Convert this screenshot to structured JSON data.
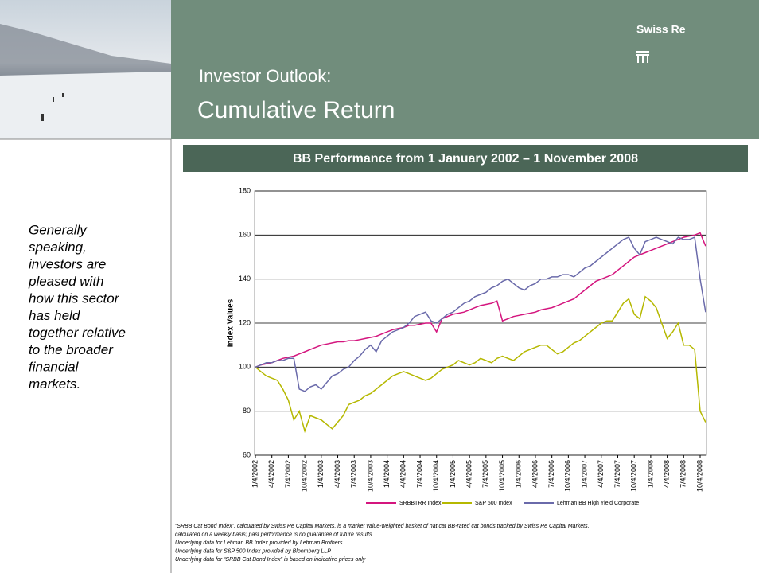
{
  "header": {
    "brand": "Swiss Re",
    "title": "Investor Outlook:",
    "subtitle": "Cumulative Return"
  },
  "sidebar": {
    "lines": [
      "Generally",
      "speaking,",
      "investors are",
      "pleased with",
      "how this sector",
      "has held",
      "together relative",
      "to the broader",
      "financial",
      "markets."
    ]
  },
  "chart_data": {
    "type": "line",
    "title": "BB Performance from 1 January 2002 – 1 November 2008",
    "y_label": "Index Values",
    "categories": [
      "1/4/2002",
      null,
      null,
      "4/4/2002",
      null,
      null,
      "7/4/2002",
      null,
      null,
      "10/4/2002",
      null,
      null,
      "1/4/2003",
      null,
      null,
      "4/4/2003",
      null,
      null,
      "7/4/2003",
      null,
      null,
      "10/4/2003",
      null,
      null,
      "1/4/2004",
      null,
      null,
      "4/4/2004",
      null,
      null,
      "7/4/2004",
      null,
      null,
      "10/4/2004",
      null,
      null,
      "1/4/2005",
      null,
      null,
      "4/4/2005",
      null,
      null,
      "7/4/2005",
      null,
      null,
      "10/4/2005",
      null,
      null,
      "1/4/2006",
      null,
      null,
      "4/4/2006",
      null,
      null,
      "7/4/2006",
      null,
      null,
      "10/4/2006",
      null,
      null,
      "1/4/2007",
      null,
      null,
      "4/4/2007",
      null,
      null,
      "7/4/2007",
      null,
      null,
      "10/4/2007",
      null,
      null,
      "1/4/2008",
      null,
      null,
      "4/4/2008",
      null,
      null,
      "7/4/2008",
      null,
      null,
      "10/4/2008",
      null
    ],
    "series": [
      {
        "name": "SRBBTRR Index",
        "color": "#d4157e",
        "values": [
          100,
          101,
          101.5,
          102,
          103,
          104,
          104.5,
          105,
          106,
          107,
          108,
          109,
          110,
          110.5,
          111,
          111.5,
          111.5,
          112,
          112,
          112.5,
          113,
          113.5,
          114,
          115,
          116,
          117,
          117.5,
          118,
          119,
          119,
          119.5,
          120,
          120,
          116,
          122,
          123,
          124,
          124.5,
          125,
          126,
          127,
          128,
          128.5,
          129,
          130,
          121,
          122,
          123,
          123.5,
          124,
          124.5,
          125,
          126,
          126.5,
          127,
          128,
          129,
          130,
          131,
          133,
          135,
          137,
          139,
          140,
          141,
          142,
          144,
          146,
          148,
          150,
          151,
          152,
          153,
          154,
          155,
          156,
          157,
          158,
          159,
          159.5,
          160,
          161,
          155
        ]
      },
      {
        "name": "S&P 500 Index",
        "color": "#b5b800",
        "values": [
          100,
          98,
          96,
          95,
          94,
          90,
          85,
          76,
          80,
          71,
          78,
          77,
          76,
          74,
          72,
          75,
          78,
          83,
          84,
          85,
          87,
          88,
          90,
          92,
          94,
          96,
          97,
          98,
          97,
          96,
          95,
          94,
          95,
          97,
          99,
          100,
          101,
          103,
          102,
          101,
          102,
          104,
          103,
          102,
          104,
          105,
          104,
          103,
          105,
          107,
          108,
          109,
          110,
          110,
          108,
          106,
          107,
          109,
          111,
          112,
          114,
          116,
          118,
          120,
          121,
          121,
          125,
          129,
          131,
          124,
          122,
          132,
          130,
          127,
          120,
          113,
          116,
          120,
          110,
          110,
          108,
          80,
          75
        ]
      },
      {
        "name": "Lehman BB High Yield Corporate",
        "color": "#6a6aaa",
        "values": [
          100,
          101,
          102,
          102,
          103,
          103,
          104,
          104,
          90,
          89,
          91,
          92,
          90,
          93,
          96,
          97,
          99,
          100,
          103,
          105,
          108,
          110,
          107,
          112,
          114,
          116,
          117,
          118,
          120,
          123,
          124,
          125,
          121,
          120,
          122,
          124,
          125,
          127,
          129,
          130,
          132,
          133,
          134,
          136,
          137,
          139,
          140,
          138,
          136,
          135,
          137,
          138,
          140,
          140,
          141,
          141,
          142,
          142,
          141,
          143,
          145,
          146,
          148,
          150,
          152,
          154,
          156,
          158,
          159,
          154,
          151,
          157,
          158,
          159,
          158,
          157,
          156,
          159,
          158,
          158,
          159,
          140,
          125
        ]
      }
    ],
    "ylim": [
      60,
      180
    ],
    "yticks": [
      60,
      80,
      100,
      120,
      140,
      160,
      180
    ],
    "grid": true,
    "legend": "bottom",
    "footnotes": [
      "“SRBB Cat Bond Index”, calculated by Swiss Re Capital Markets, is a market value-weighted basket of nat cat BB-rated cat bonds tracked by Swiss Re Capital Markets,",
      "calculated on a weekly basis; past performance is no guarantee of future results",
      "Underlying data for Lehman BB Index provided by Lehman Brothers",
      "Underlying data for S&P 500 Index provided by Bloomberg LLP",
      "Underlying data for “SRBB Cat Bond Index” is based on indicative prices only"
    ]
  }
}
